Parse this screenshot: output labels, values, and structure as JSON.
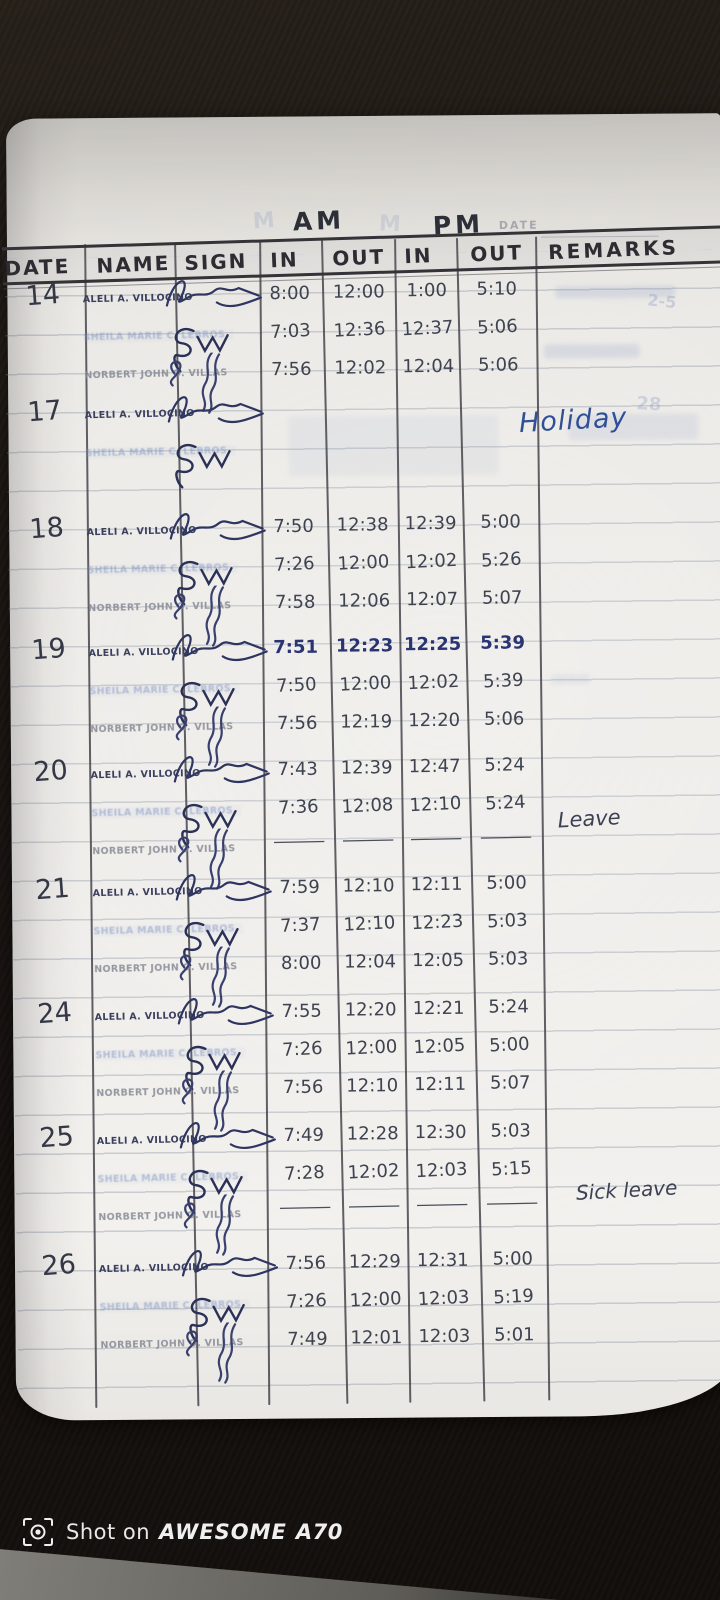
{
  "page": {
    "top_labels": {
      "am": "AM",
      "pm": "PM",
      "printed_date": "DATE"
    },
    "table": {
      "columns": [
        "DATE",
        "NAME",
        "SIGN",
        "IN",
        "OUT",
        "IN",
        "OUT",
        "REMARKS"
      ],
      "rows": [
        {
          "date": "14",
          "remark": "",
          "entries": [
            {
              "name": "ALELI A. VILLOCINO",
              "in_am": "8:00",
              "out_am": "12:00",
              "in_pm": "1:00",
              "out_pm": "5:10"
            },
            {
              "name": "SHEILA MARIE C. LEBROS",
              "in_am": "7:03",
              "out_am": "12:36",
              "in_pm": "12:37",
              "out_pm": "5:06"
            },
            {
              "name": "NORBERT JOHN O. VILLAS",
              "in_am": "7:56",
              "out_am": "12:02",
              "in_pm": "12:04",
              "out_pm": "5:06"
            }
          ]
        },
        {
          "date": "17",
          "remark": "Holiday",
          "entries": [
            {
              "name": "ALELI A. VILLOCINO",
              "in_am": "",
              "out_am": "",
              "in_pm": "",
              "out_pm": ""
            },
            {
              "name": "SHEILA MARIE C. LEBROS",
              "in_am": "",
              "out_am": "",
              "in_pm": "",
              "out_pm": ""
            }
          ]
        },
        {
          "date": "18",
          "remark": "",
          "entries": [
            {
              "name": "ALELI A. VILLOCINO",
              "in_am": "7:50",
              "out_am": "12:38",
              "in_pm": "12:39",
              "out_pm": "5:00"
            },
            {
              "name": "SHEILA MARIE C. LEBROS",
              "in_am": "7:26",
              "out_am": "12:00",
              "in_pm": "12:02",
              "out_pm": "5:26"
            },
            {
              "name": "NORBERT JOHN O. VILLAS",
              "in_am": "7:58",
              "out_am": "12:06",
              "in_pm": "12:07",
              "out_pm": "5:07"
            }
          ]
        },
        {
          "date": "19",
          "remark": "",
          "entries": [
            {
              "name": "ALELI A. VILLOCINO",
              "ink": "blue",
              "in_am": "7:51",
              "out_am": "12:23",
              "in_pm": "12:25",
              "out_pm": "5:39"
            },
            {
              "name": "SHEILA MARIE C. LEBROS",
              "in_am": "7:50",
              "out_am": "12:00",
              "in_pm": "12:02",
              "out_pm": "5:39"
            },
            {
              "name": "NORBERT JOHN O. VILLAS",
              "in_am": "7:56",
              "out_am": "12:19",
              "in_pm": "12:20",
              "out_pm": "5:06"
            }
          ]
        },
        {
          "date": "20",
          "remark": "Leave",
          "entries": [
            {
              "name": "ALELI A. VILLOCINO",
              "in_am": "7:43",
              "out_am": "12:39",
              "in_pm": "12:47",
              "out_pm": "5:24"
            },
            {
              "name": "SHEILA MARIE C. LEBROS",
              "in_am": "7:36",
              "out_am": "12:08",
              "in_pm": "12:10",
              "out_pm": "5:24"
            },
            {
              "name": "NORBERT JOHN O. VILLAS",
              "in_am": "—",
              "out_am": "—",
              "in_pm": "—",
              "out_pm": "—"
            }
          ]
        },
        {
          "date": "21",
          "remark": "",
          "entries": [
            {
              "name": "ALELI A. VILLOCINO",
              "in_am": "7:59",
              "out_am": "12:10",
              "in_pm": "12:11",
              "out_pm": "5:00"
            },
            {
              "name": "SHEILA MARIE C. LEBROS",
              "in_am": "7:37",
              "out_am": "12:10",
              "in_pm": "12:23",
              "out_pm": "5:03"
            },
            {
              "name": "NORBERT JOHN O. VILLAS",
              "in_am": "8:00",
              "out_am": "12:04",
              "in_pm": "12:05",
              "out_pm": "5:03"
            }
          ]
        },
        {
          "date": "24",
          "remark": "",
          "entries": [
            {
              "name": "ALELI A. VILLOCINO",
              "in_am": "7:55",
              "out_am": "12:20",
              "in_pm": "12:21",
              "out_pm": "5:24"
            },
            {
              "name": "SHEILA MARIE C. LEBROS",
              "in_am": "7:26",
              "out_am": "12:00",
              "in_pm": "12:05",
              "out_pm": "5:00"
            },
            {
              "name": "NORBERT JOHN O. VILLAS",
              "in_am": "7:56",
              "out_am": "12:10",
              "in_pm": "12:11",
              "out_pm": "5:07"
            }
          ]
        },
        {
          "date": "25",
          "remark": "Sick leave",
          "entries": [
            {
              "name": "ALELI A. VILLOCINO",
              "in_am": "7:49",
              "out_am": "12:28",
              "in_pm": "12:30",
              "out_pm": "5:03"
            },
            {
              "name": "SHEILA MARIE C. LEBROS",
              "in_am": "7:28",
              "out_am": "12:02",
              "in_pm": "12:03",
              "out_pm": "5:15"
            },
            {
              "name": "NORBERT JOHN O. VILLAS",
              "in_am": "—",
              "out_am": "—",
              "in_pm": "—",
              "out_pm": "—"
            }
          ]
        },
        {
          "date": "26",
          "remark": "",
          "entries": [
            {
              "name": "ALELI A. VILLOCINO",
              "in_am": "7:56",
              "out_am": "12:29",
              "in_pm": "12:31",
              "out_pm": "5:00"
            },
            {
              "name": "SHEILA MARIE C. LEBROS",
              "in_am": "7:26",
              "out_am": "12:00",
              "in_pm": "12:03",
              "out_pm": "5:19"
            },
            {
              "name": "NORBERT JOHN O. VILLAS",
              "in_am": "7:49",
              "out_am": "12:01",
              "in_pm": "12:03",
              "out_pm": "5:01"
            }
          ]
        }
      ]
    }
  },
  "artifacts": {
    "bleed_marks": [
      "M",
      "M",
      "2-5",
      "28"
    ]
  },
  "watermark": {
    "prefix": "Shot on",
    "brand": "AWESOME",
    "model": "A70"
  },
  "colors": {
    "page": "#efedea",
    "backdrop": "#1d1713",
    "graphite_ink": "#3e4350",
    "blue_ink": "#2a3472",
    "stamp_navy": "#3a3f5e",
    "stamp_faint_blue": "#7d93c4",
    "remark_blue": "#2f4f96",
    "watermark_white": "#efefef"
  }
}
